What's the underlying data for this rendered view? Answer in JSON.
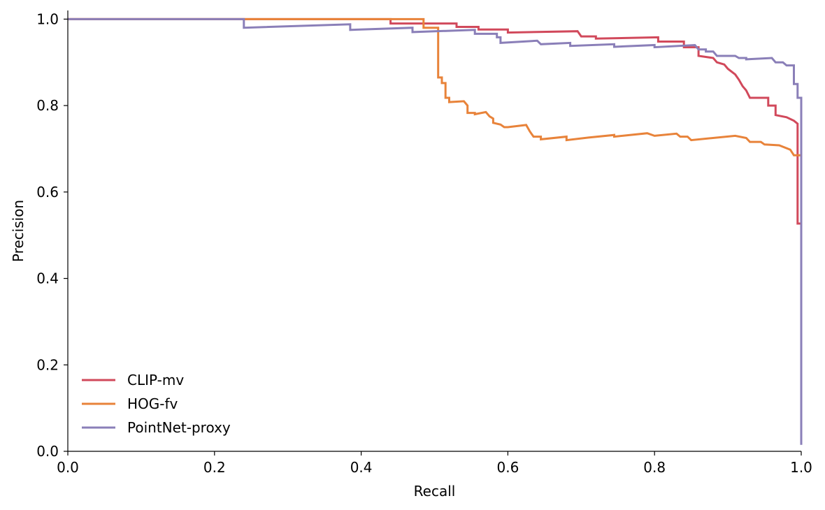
{
  "chart_data": {
    "type": "line",
    "title": "",
    "xlabel": "Recall",
    "ylabel": "Precision",
    "xlim": [
      0,
      1
    ],
    "ylim": [
      0,
      1.02
    ],
    "xticks": [
      "0.0",
      "0.2",
      "0.4",
      "0.6",
      "0.8",
      "1.0"
    ],
    "yticks": [
      "0.0",
      "0.2",
      "0.4",
      "0.6",
      "0.8",
      "1.0"
    ],
    "grid": false,
    "legend_position": "lower-left",
    "series": [
      {
        "name": "CLIP-mv",
        "color": "#d1495b",
        "points": [
          [
            0.0,
            1.0
          ],
          [
            0.44,
            1.0
          ],
          [
            0.44,
            0.99
          ],
          [
            0.53,
            0.99
          ],
          [
            0.53,
            0.982
          ],
          [
            0.56,
            0.982
          ],
          [
            0.56,
            0.976
          ],
          [
            0.6,
            0.976
          ],
          [
            0.6,
            0.969
          ],
          [
            0.695,
            0.972
          ],
          [
            0.7,
            0.96
          ],
          [
            0.72,
            0.96
          ],
          [
            0.72,
            0.955
          ],
          [
            0.805,
            0.958
          ],
          [
            0.805,
            0.948
          ],
          [
            0.84,
            0.948
          ],
          [
            0.84,
            0.935
          ],
          [
            0.86,
            0.935
          ],
          [
            0.86,
            0.915
          ],
          [
            0.88,
            0.91
          ],
          [
            0.885,
            0.9
          ],
          [
            0.895,
            0.895
          ],
          [
            0.9,
            0.885
          ],
          [
            0.91,
            0.872
          ],
          [
            0.915,
            0.86
          ],
          [
            0.92,
            0.845
          ],
          [
            0.925,
            0.835
          ],
          [
            0.93,
            0.818
          ],
          [
            0.955,
            0.818
          ],
          [
            0.955,
            0.8
          ],
          [
            0.965,
            0.8
          ],
          [
            0.965,
            0.778
          ],
          [
            0.98,
            0.773
          ],
          [
            0.99,
            0.765
          ],
          [
            0.995,
            0.758
          ],
          [
            0.995,
            0.527
          ],
          [
            1.0,
            0.527
          ]
        ]
      },
      {
        "name": "HOG-fv",
        "color": "#e8833a",
        "points": [
          [
            0.0,
            1.0
          ],
          [
            0.485,
            1.0
          ],
          [
            0.485,
            0.98
          ],
          [
            0.505,
            0.98
          ],
          [
            0.505,
            0.865
          ],
          [
            0.51,
            0.865
          ],
          [
            0.51,
            0.852
          ],
          [
            0.515,
            0.852
          ],
          [
            0.515,
            0.818
          ],
          [
            0.52,
            0.818
          ],
          [
            0.52,
            0.808
          ],
          [
            0.54,
            0.81
          ],
          [
            0.545,
            0.8
          ],
          [
            0.545,
            0.783
          ],
          [
            0.555,
            0.783
          ],
          [
            0.555,
            0.78
          ],
          [
            0.57,
            0.785
          ],
          [
            0.575,
            0.775
          ],
          [
            0.58,
            0.77
          ],
          [
            0.58,
            0.76
          ],
          [
            0.59,
            0.756
          ],
          [
            0.595,
            0.75
          ],
          [
            0.6,
            0.75
          ],
          [
            0.625,
            0.755
          ],
          [
            0.63,
            0.74
          ],
          [
            0.635,
            0.728
          ],
          [
            0.645,
            0.728
          ],
          [
            0.645,
            0.722
          ],
          [
            0.68,
            0.728
          ],
          [
            0.68,
            0.72
          ],
          [
            0.71,
            0.726
          ],
          [
            0.745,
            0.732
          ],
          [
            0.745,
            0.728
          ],
          [
            0.79,
            0.736
          ],
          [
            0.8,
            0.73
          ],
          [
            0.83,
            0.735
          ],
          [
            0.835,
            0.728
          ],
          [
            0.845,
            0.728
          ],
          [
            0.85,
            0.72
          ],
          [
            0.91,
            0.73
          ],
          [
            0.925,
            0.725
          ],
          [
            0.93,
            0.716
          ],
          [
            0.945,
            0.716
          ],
          [
            0.95,
            0.71
          ],
          [
            0.97,
            0.708
          ],
          [
            0.985,
            0.698
          ],
          [
            0.99,
            0.685
          ],
          [
            1.0,
            0.685
          ]
        ]
      },
      {
        "name": "PointNet-proxy",
        "color": "#8a7fb8",
        "points": [
          [
            0.0,
            1.0
          ],
          [
            0.24,
            1.0
          ],
          [
            0.24,
            0.98
          ],
          [
            0.385,
            0.988
          ],
          [
            0.385,
            0.975
          ],
          [
            0.47,
            0.98
          ],
          [
            0.47,
            0.97
          ],
          [
            0.555,
            0.975
          ],
          [
            0.555,
            0.966
          ],
          [
            0.585,
            0.966
          ],
          [
            0.585,
            0.958
          ],
          [
            0.59,
            0.958
          ],
          [
            0.59,
            0.945
          ],
          [
            0.64,
            0.95
          ],
          [
            0.645,
            0.942
          ],
          [
            0.685,
            0.945
          ],
          [
            0.685,
            0.938
          ],
          [
            0.745,
            0.942
          ],
          [
            0.745,
            0.936
          ],
          [
            0.8,
            0.94
          ],
          [
            0.8,
            0.935
          ],
          [
            0.855,
            0.94
          ],
          [
            0.86,
            0.93
          ],
          [
            0.87,
            0.93
          ],
          [
            0.87,
            0.925
          ],
          [
            0.88,
            0.925
          ],
          [
            0.885,
            0.915
          ],
          [
            0.91,
            0.915
          ],
          [
            0.915,
            0.91
          ],
          [
            0.925,
            0.91
          ],
          [
            0.925,
            0.907
          ],
          [
            0.96,
            0.91
          ],
          [
            0.965,
            0.9
          ],
          [
            0.975,
            0.9
          ],
          [
            0.98,
            0.893
          ],
          [
            0.99,
            0.893
          ],
          [
            0.99,
            0.85
          ],
          [
            0.995,
            0.85
          ],
          [
            0.995,
            0.818
          ],
          [
            1.0,
            0.818
          ],
          [
            1.0,
            0.015
          ]
        ]
      }
    ]
  }
}
